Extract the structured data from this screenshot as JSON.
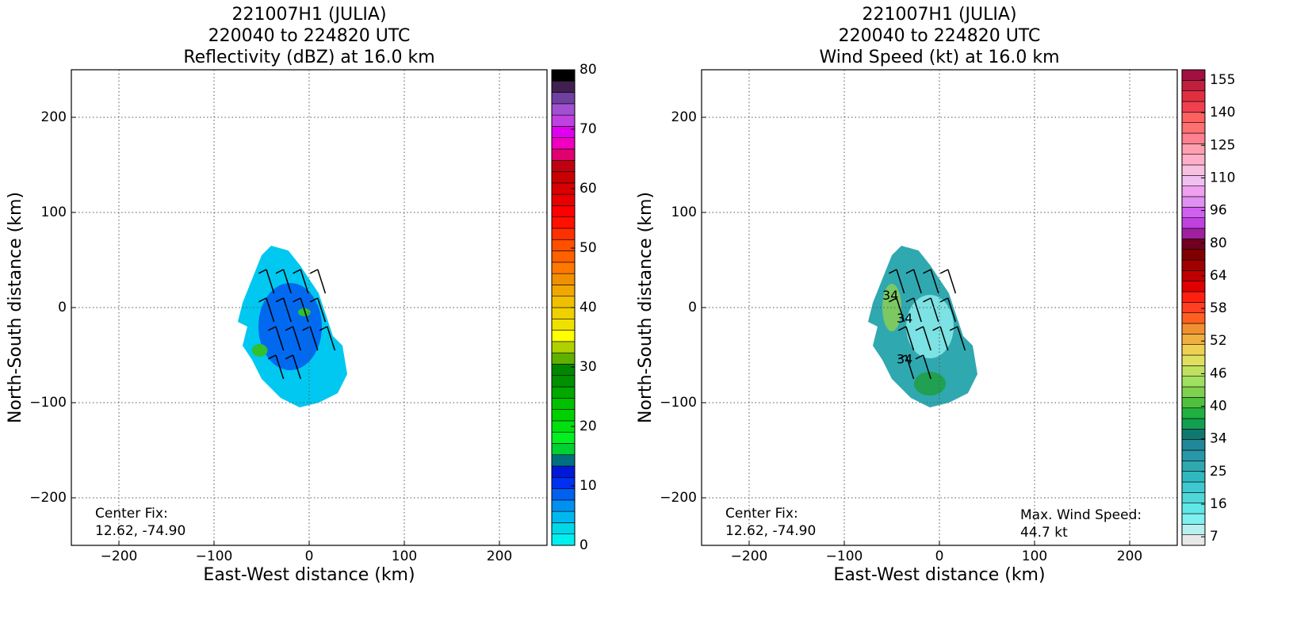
{
  "chart_data": [
    {
      "type": "heatmap",
      "title": [
        "221007H1 (JULIA)",
        "220040 to 224820 UTC",
        "Reflectivity (dBZ) at 16.0 km"
      ],
      "xlabel": "East-West distance (km)",
      "ylabel": "North-South distance (km)",
      "xlim": [
        -250,
        250
      ],
      "ylim": [
        -250,
        250
      ],
      "xticks": [
        {
          "value": -200,
          "label": "−200"
        },
        {
          "value": -100,
          "label": "−100"
        },
        0,
        100,
        200
      ],
      "yticks": [
        {
          "value": -200,
          "label": "−200"
        },
        {
          "value": -100,
          "label": "−100"
        },
        0,
        100,
        200
      ],
      "grid": true,
      "annotation": [
        "Center Fix:",
        "12.62, -74.90"
      ],
      "field_color": "#00c8f0",
      "colorbar": {
        "scale": "linear",
        "range": [
          0,
          80
        ],
        "ticks": [
          0,
          10,
          20,
          30,
          40,
          50,
          60,
          70,
          80
        ],
        "colors": [
          "#00f0f0",
          "#00d8e8",
          "#00b8f0",
          "#0090f0",
          "#0060f0",
          "#0030f0",
          "#0018d8",
          "#007080",
          "#00d030",
          "#00f020",
          "#00e010",
          "#00d000",
          "#00c000",
          "#00a800",
          "#009000",
          "#008800",
          "#60b000",
          "#b0d000",
          "#ffff00",
          "#f0e000",
          "#f0d000",
          "#f0c000",
          "#f0a800",
          "#f09000",
          "#ff7800",
          "#ff6000",
          "#ff5000",
          "#ff3000",
          "#ff1000",
          "#ff0000",
          "#e80000",
          "#d80000",
          "#c80000",
          "#c00010",
          "#e00070",
          "#f000c0",
          "#e000f0",
          "#c040e0",
          "#a050d0",
          "#7040a0",
          "#402050",
          "#000000"
        ]
      }
    },
    {
      "type": "heatmap",
      "title": [
        "221007H1 (JULIA)",
        "220040 to 224820 UTC",
        "Wind Speed (kt) at 16.0 km"
      ],
      "xlabel": "East-West distance (km)",
      "ylabel": "North-South distance (km)",
      "xlim": [
        -250,
        250
      ],
      "ylim": [
        -250,
        250
      ],
      "xticks": [
        {
          "value": -200,
          "label": "−200"
        },
        {
          "value": -100,
          "label": "−100"
        },
        0,
        100,
        200
      ],
      "yticks": [
        {
          "value": -200,
          "label": "−200"
        },
        {
          "value": -100,
          "label": "−100"
        },
        0,
        100,
        200
      ],
      "grid": true,
      "annotation": [
        "Center Fix:",
        "12.62, -74.90"
      ],
      "annotation_right": [
        "Max. Wind Speed:",
        "44.7 kt"
      ],
      "contour_label": "34",
      "field_color": "#30a8b0",
      "colorbar": {
        "scale": "uniform",
        "ticks": [
          7,
          16,
          25,
          34,
          40,
          46,
          52,
          58,
          64,
          80,
          96,
          110,
          125,
          140,
          155
        ],
        "colors": [
          "#e8e8e8",
          "#b8f0f0",
          "#80f0f0",
          "#60e8e8",
          "#50d8d8",
          "#40c8d0",
          "#30b8c0",
          "#30a8b0",
          "#2898a8",
          "#208898",
          "#107870",
          "#10a050",
          "#20b040",
          "#50c040",
          "#80d050",
          "#a0e060",
          "#c0e060",
          "#e0e060",
          "#f0d050",
          "#f0b040",
          "#f09030",
          "#ff6020",
          "#ff4020",
          "#ff2010",
          "#e00000",
          "#c00000",
          "#a00000",
          "#800000",
          "#700020",
          "#a020a0",
          "#c040e0",
          "#d060f0",
          "#e090f0",
          "#f0a0f0",
          "#f0c0f0",
          "#f8c0e0",
          "#ffb0c8",
          "#ffa0b0",
          "#ff8090",
          "#ff7070",
          "#ff6060",
          "#f04050",
          "#e03040",
          "#c02040",
          "#a01040"
        ]
      }
    }
  ]
}
